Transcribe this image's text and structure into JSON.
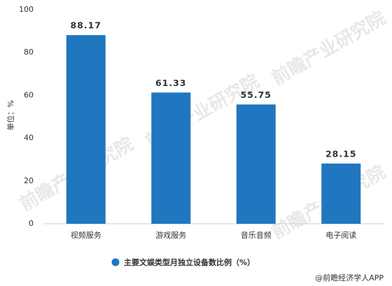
{
  "chart_data": {
    "type": "bar",
    "y_label": "单位：%",
    "categories": [
      "视频服务",
      "游戏服务",
      "音乐音频",
      "电子阅读"
    ],
    "series": [
      {
        "name": "主要文娱类型月独立设备数比例（%）",
        "color": "#1f77c0",
        "values": [
          88.17,
          61.33,
          55.75,
          28.15
        ]
      }
    ],
    "ylim": [
      0,
      100
    ],
    "yticks": [
      0,
      20,
      40,
      60,
      80,
      100
    ],
    "grid": false,
    "watermark": "前瞻产业研究院",
    "source": "@前瞻经济学人APP"
  }
}
